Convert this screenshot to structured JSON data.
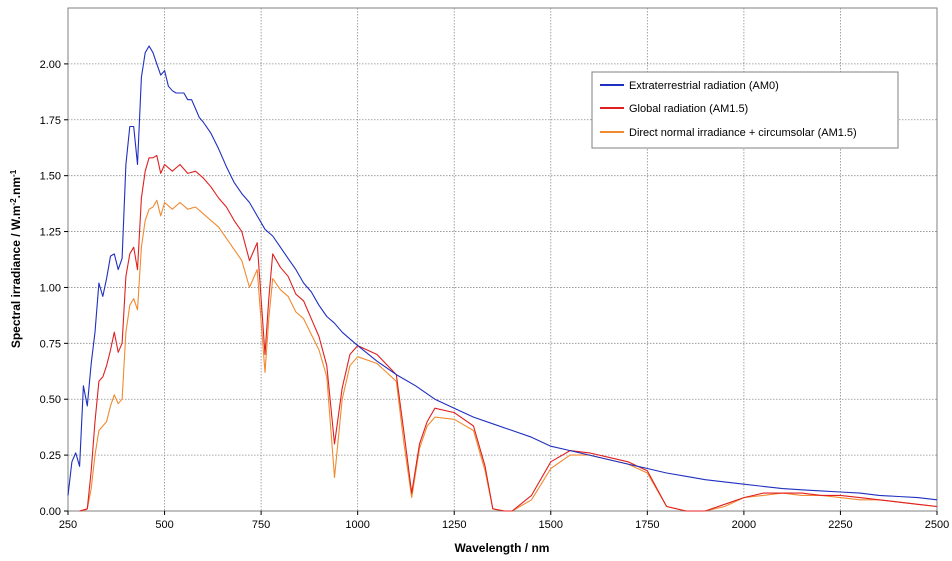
{
  "chart_data": {
    "type": "line",
    "title": "",
    "xlabel": "Wavelength / nm",
    "ylabel": "Spectral irradiance / W.m",
    "ylabel_sup1": "-2",
    "ylabel_mid": ".nm",
    "ylabel_sup2": "-1",
    "xlim": [
      250,
      2500
    ],
    "ylim": [
      0,
      2.25
    ],
    "x_ticks": [
      "250",
      "500",
      "750",
      "1000",
      "1250",
      "1500",
      "1750",
      "2000",
      "2250",
      "2500"
    ],
    "y_ticks": [
      "0.00",
      "0.25",
      "0.50",
      "0.75",
      "1.00",
      "1.25",
      "1.50",
      "1.75",
      "2.00"
    ],
    "grid": true,
    "legend_position": "top-right",
    "series": [
      {
        "name": "Extraterrestrial radiation (AM0)",
        "color": "#1f2fbf",
        "x": [
          250,
          260,
          270,
          280,
          290,
          300,
          310,
          320,
          330,
          340,
          350,
          360,
          370,
          380,
          390,
          400,
          410,
          420,
          430,
          440,
          450,
          460,
          470,
          480,
          490,
          500,
          510,
          520,
          530,
          540,
          550,
          560,
          570,
          580,
          590,
          600,
          620,
          640,
          660,
          680,
          700,
          720,
          740,
          760,
          780,
          800,
          820,
          840,
          860,
          880,
          900,
          920,
          940,
          960,
          980,
          1000,
          1050,
          1100,
          1150,
          1200,
          1250,
          1300,
          1350,
          1400,
          1450,
          1500,
          1550,
          1600,
          1650,
          1700,
          1750,
          1800,
          1850,
          1900,
          1950,
          2000,
          2050,
          2100,
          2150,
          2200,
          2250,
          2300,
          2350,
          2400,
          2450,
          2500
        ],
        "y": [
          0.07,
          0.22,
          0.26,
          0.2,
          0.56,
          0.47,
          0.66,
          0.8,
          1.02,
          0.96,
          1.04,
          1.14,
          1.15,
          1.08,
          1.13,
          1.55,
          1.72,
          1.72,
          1.55,
          1.94,
          2.05,
          2.08,
          2.05,
          2.0,
          1.95,
          1.97,
          1.9,
          1.88,
          1.87,
          1.87,
          1.87,
          1.84,
          1.84,
          1.8,
          1.76,
          1.74,
          1.69,
          1.62,
          1.54,
          1.47,
          1.42,
          1.38,
          1.32,
          1.26,
          1.23,
          1.18,
          1.13,
          1.08,
          1.02,
          0.98,
          0.92,
          0.87,
          0.84,
          0.8,
          0.77,
          0.74,
          0.67,
          0.61,
          0.56,
          0.5,
          0.46,
          0.42,
          0.39,
          0.36,
          0.33,
          0.29,
          0.27,
          0.25,
          0.23,
          0.21,
          0.19,
          0.17,
          0.155,
          0.14,
          0.13,
          0.12,
          0.11,
          0.1,
          0.095,
          0.09,
          0.085,
          0.08,
          0.07,
          0.065,
          0.06,
          0.05
        ]
      },
      {
        "name": "Global radiation (AM1.5)",
        "color": "#e02020",
        "x": [
          280,
          300,
          310,
          320,
          330,
          340,
          350,
          360,
          370,
          380,
          390,
          400,
          410,
          420,
          430,
          440,
          450,
          460,
          470,
          480,
          490,
          500,
          520,
          540,
          560,
          580,
          600,
          620,
          640,
          660,
          680,
          700,
          720,
          740,
          760,
          770,
          780,
          800,
          820,
          840,
          860,
          880,
          900,
          920,
          940,
          960,
          980,
          1000,
          1050,
          1100,
          1120,
          1140,
          1160,
          1180,
          1200,
          1250,
          1300,
          1330,
          1350,
          1380,
          1400,
          1450,
          1500,
          1550,
          1600,
          1650,
          1700,
          1750,
          1800,
          1850,
          1900,
          1950,
          2000,
          2050,
          2100,
          2150,
          2200,
          2250,
          2300,
          2350,
          2400,
          2450,
          2500
        ],
        "y": [
          0.0,
          0.01,
          0.18,
          0.4,
          0.58,
          0.6,
          0.65,
          0.72,
          0.8,
          0.71,
          0.75,
          1.05,
          1.15,
          1.18,
          1.08,
          1.4,
          1.52,
          1.58,
          1.58,
          1.59,
          1.51,
          1.55,
          1.52,
          1.55,
          1.51,
          1.52,
          1.49,
          1.45,
          1.4,
          1.36,
          1.3,
          1.25,
          1.12,
          1.2,
          0.7,
          0.95,
          1.15,
          1.09,
          1.05,
          0.97,
          0.94,
          0.86,
          0.78,
          0.65,
          0.3,
          0.55,
          0.7,
          0.74,
          0.7,
          0.61,
          0.35,
          0.08,
          0.3,
          0.4,
          0.46,
          0.44,
          0.38,
          0.2,
          0.01,
          0.0,
          0.0,
          0.07,
          0.22,
          0.27,
          0.26,
          0.24,
          0.22,
          0.18,
          0.02,
          0.0,
          0.0,
          0.03,
          0.06,
          0.08,
          0.08,
          0.08,
          0.07,
          0.07,
          0.06,
          0.05,
          0.04,
          0.03,
          0.02
        ]
      },
      {
        "name": "Direct normal irradiance + circumsolar (AM1.5)",
        "color": "#f08a30",
        "x": [
          290,
          300,
          310,
          320,
          330,
          340,
          350,
          360,
          370,
          380,
          390,
          400,
          410,
          420,
          430,
          440,
          450,
          460,
          470,
          480,
          490,
          500,
          520,
          540,
          560,
          580,
          600,
          620,
          640,
          660,
          680,
          700,
          720,
          740,
          760,
          770,
          780,
          800,
          820,
          840,
          860,
          880,
          900,
          920,
          940,
          960,
          980,
          1000,
          1050,
          1100,
          1120,
          1140,
          1160,
          1180,
          1200,
          1250,
          1300,
          1330,
          1350,
          1380,
          1400,
          1450,
          1500,
          1550,
          1600,
          1650,
          1700,
          1750,
          1800,
          1850,
          1900,
          1950,
          2000,
          2050,
          2100,
          2150,
          2200,
          2250,
          2300,
          2350,
          2400,
          2450,
          2500
        ],
        "y": [
          0.0,
          0.01,
          0.1,
          0.25,
          0.36,
          0.38,
          0.4,
          0.47,
          0.52,
          0.48,
          0.5,
          0.8,
          0.92,
          0.95,
          0.9,
          1.18,
          1.3,
          1.35,
          1.36,
          1.39,
          1.32,
          1.38,
          1.35,
          1.38,
          1.35,
          1.36,
          1.33,
          1.3,
          1.27,
          1.22,
          1.17,
          1.12,
          1.0,
          1.08,
          0.62,
          0.86,
          1.04,
          0.99,
          0.96,
          0.89,
          0.86,
          0.79,
          0.72,
          0.6,
          0.15,
          0.5,
          0.65,
          0.69,
          0.66,
          0.58,
          0.3,
          0.06,
          0.28,
          0.38,
          0.42,
          0.41,
          0.36,
          0.18,
          0.01,
          0.0,
          0.0,
          0.05,
          0.19,
          0.25,
          0.25,
          0.23,
          0.21,
          0.17,
          0.02,
          0.0,
          0.0,
          0.02,
          0.06,
          0.07,
          0.08,
          0.07,
          0.07,
          0.06,
          0.05,
          0.05,
          0.04,
          0.03,
          0.02
        ]
      }
    ]
  }
}
